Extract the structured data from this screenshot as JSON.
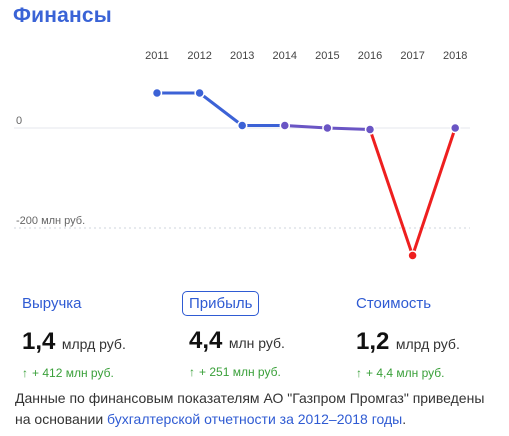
{
  "header": {
    "title": "Финансы"
  },
  "chart_data": {
    "type": "line",
    "x": [
      "2011",
      "2012",
      "2013",
      "2014",
      "2015",
      "2016",
      "2017",
      "2018"
    ],
    "series": [
      {
        "values": [
          70,
          70,
          5,
          5,
          0,
          -3,
          -255,
          0
        ]
      }
    ],
    "y_labels": [
      "0",
      "-200 млн руб."
    ],
    "ylim": [
      -260,
      100
    ],
    "colors": {
      "positive": "#3c62d6",
      "mid": "#6a55c4",
      "negative": "#ee1f1f",
      "grid": "#cfd4dc",
      "zero_line": "#e4e7ec"
    }
  },
  "kpis": [
    {
      "label": "Выручка",
      "value": "1,4",
      "unit": "млрд руб.",
      "delta": "+ 412 млн руб.",
      "arrow": "↑"
    },
    {
      "label": "Прибыль",
      "value": "4,4",
      "unit": "млн руб.",
      "delta": "+ 251 млн руб.",
      "arrow": "↑"
    },
    {
      "label": "Стоимость",
      "value": "1,2",
      "unit": "млрд руб.",
      "delta": "+ 4,4 млн руб.",
      "arrow": "↑"
    }
  ],
  "note": {
    "text_before": "Данные по финансовым показателям АО \"Газпром Промгаз\" приведены на основании ",
    "link_text": "бухгалтерской отчетности за 2012–2018 годы",
    "text_after": "."
  }
}
